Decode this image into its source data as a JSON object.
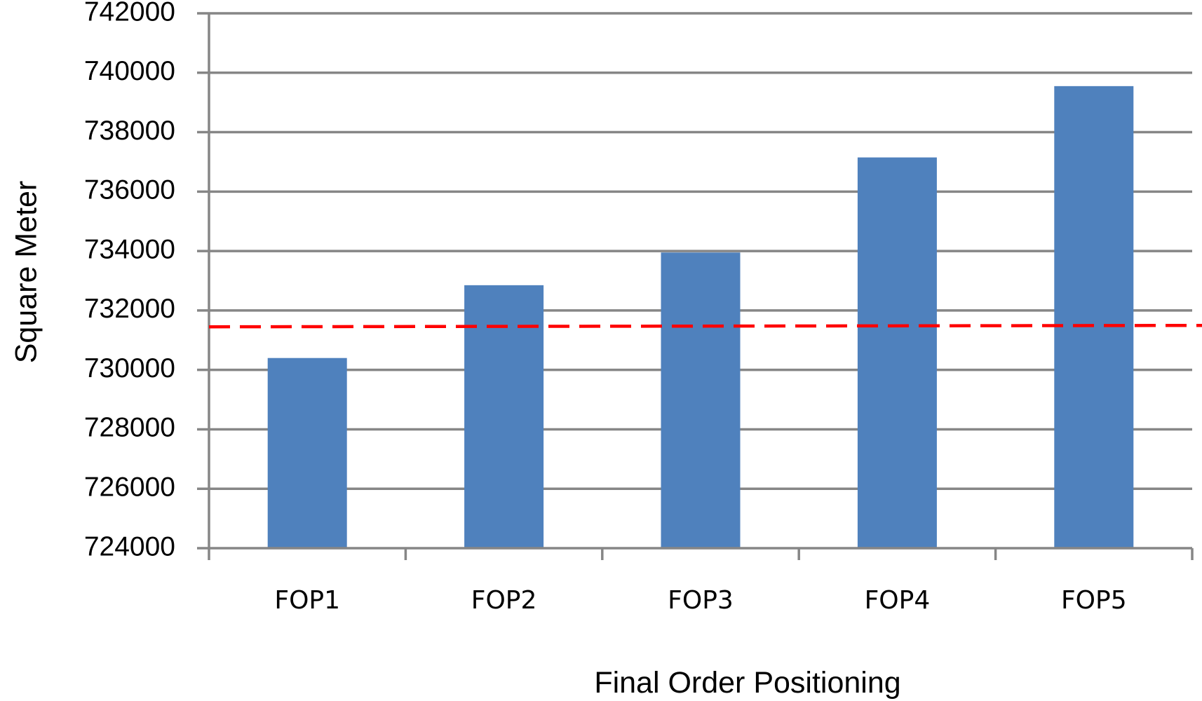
{
  "chart_data": {
    "type": "bar",
    "title": "",
    "xlabel": "Final Order Positioning",
    "ylabel": "Square Meter",
    "categories": [
      "FOP1",
      "FOP2",
      "FOP3",
      "FOP4",
      "FOP5"
    ],
    "values": [
      730400,
      732850,
      733950,
      737150,
      739550
    ],
    "ylim": [
      724000,
      742000
    ],
    "yticks": [
      724000,
      726000,
      728000,
      730000,
      732000,
      734000,
      736000,
      738000,
      740000,
      742000
    ],
    "ytick_labels": [
      "724000",
      "726000",
      "728000",
      "730000",
      "732000",
      "734000",
      "736000",
      "738000",
      "740000",
      "742000"
    ],
    "grid": true,
    "legend": "none",
    "bar_color": "#4f81bd",
    "grid_color": "#868686",
    "reference_line": {
      "y": 731450,
      "style": "dashed",
      "color": "#ff0000"
    }
  }
}
